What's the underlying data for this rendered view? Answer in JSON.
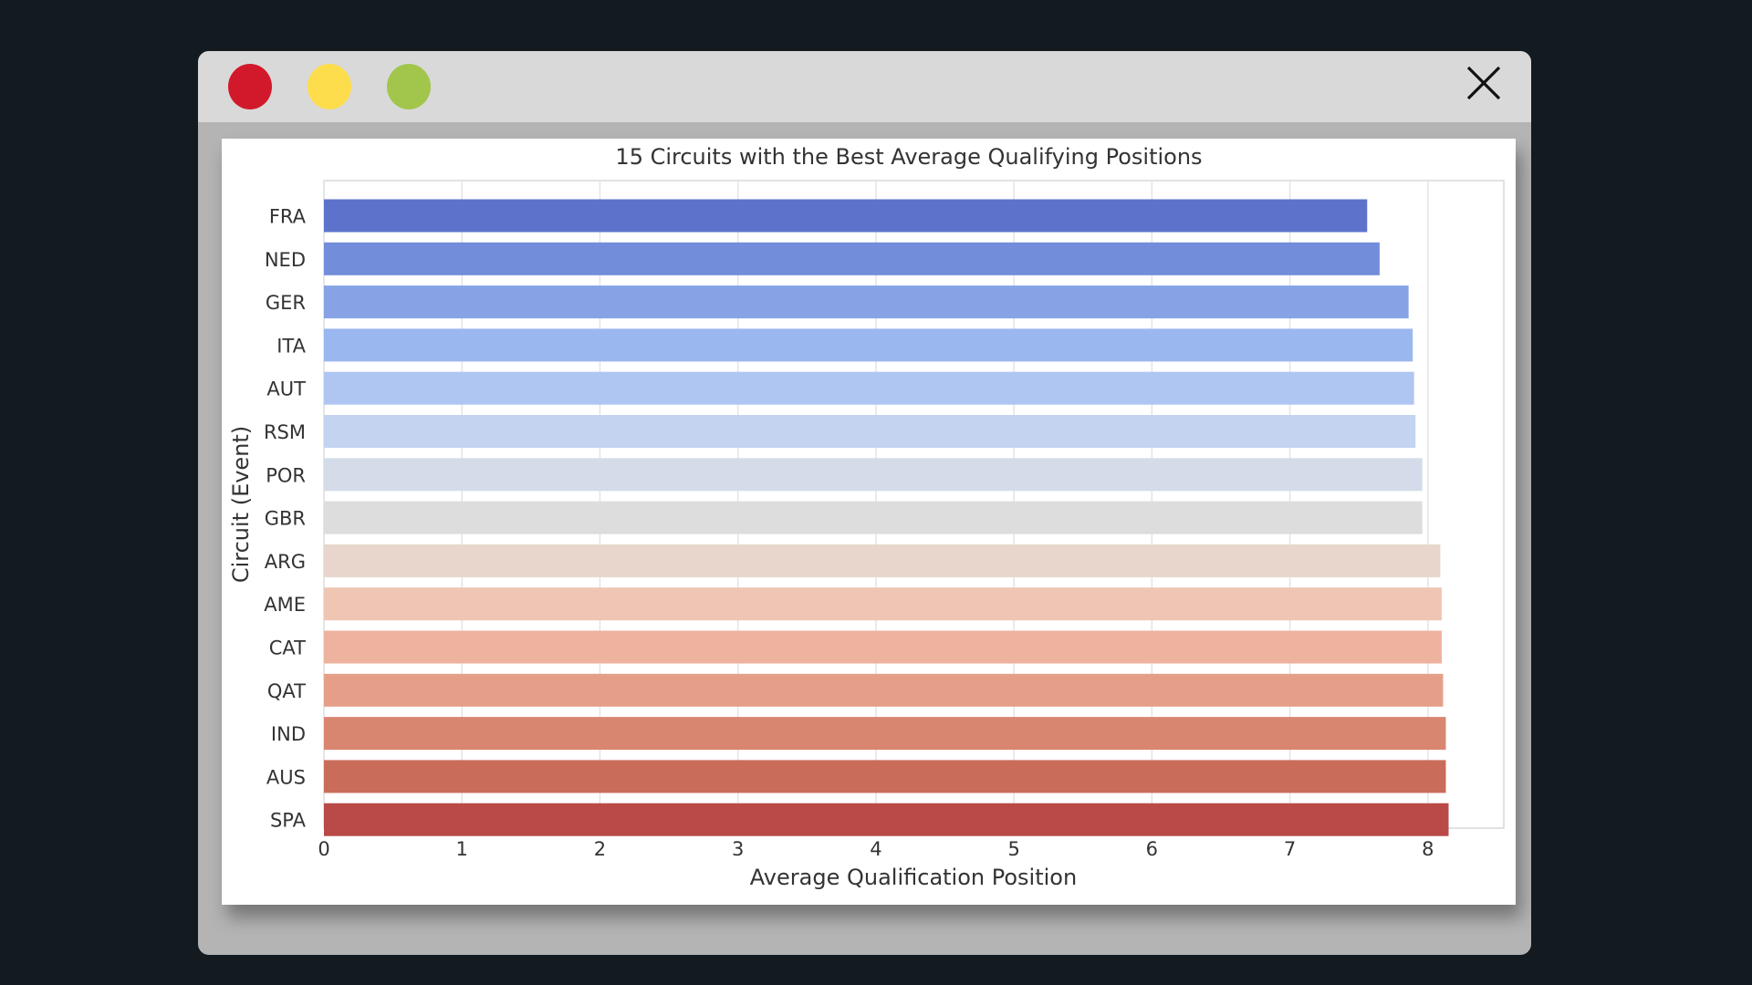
{
  "window": {
    "controls": {
      "red": "#d2192c",
      "yellow": "#fedd4d",
      "green": "#a1c64b"
    },
    "close_icon": "close-icon"
  },
  "chart_data": {
    "type": "bar",
    "orientation": "horizontal",
    "title": "15 Circuits with the Best Average Qualifying Positions",
    "xlabel": "Average Qualification Position",
    "ylabel": "Circuit (Event)",
    "xlim": [
      0,
      8.55
    ],
    "xticks": [
      0,
      1,
      2,
      3,
      4,
      5,
      6,
      7,
      8
    ],
    "grid": true,
    "categories": [
      "FRA",
      "NED",
      "GER",
      "ITA",
      "AUT",
      "RSM",
      "POR",
      "GBR",
      "ARG",
      "AME",
      "CAT",
      "QAT",
      "IND",
      "AUS",
      "SPA"
    ],
    "values": [
      7.56,
      7.65,
      7.86,
      7.89,
      7.9,
      7.91,
      7.96,
      7.96,
      8.09,
      8.1,
      8.1,
      8.11,
      8.13,
      8.13,
      8.15
    ],
    "colors": [
      "#5d73cb",
      "#728dd9",
      "#87a3e5",
      "#9bb7ef",
      "#afc6f2",
      "#c3d3f0",
      "#d3dce8",
      "#dddddd",
      "#e8d6cc",
      "#efc5b4",
      "#edb39e",
      "#e59f89",
      "#d98670",
      "#c96c5a",
      "#b94a48"
    ]
  }
}
